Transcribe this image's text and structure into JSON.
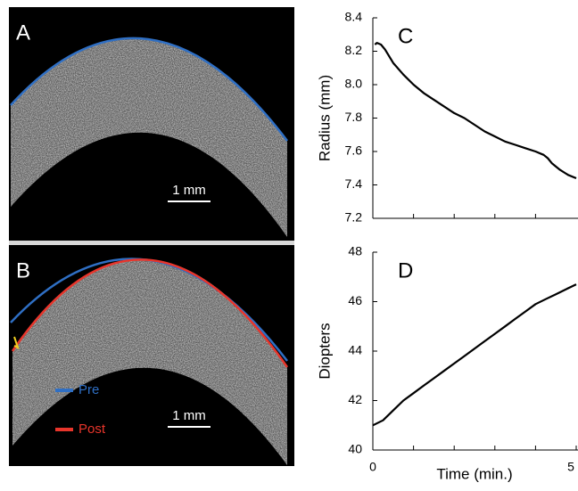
{
  "images": [
    {
      "label": "A",
      "scale_bar": "1 mm"
    },
    {
      "label": "B",
      "scale_bar": "1 mm",
      "legend": [
        {
          "name": "Pre",
          "color": "#2f6fc4"
        },
        {
          "name": "Post",
          "color": "#e8352b"
        }
      ]
    }
  ],
  "chart_data": [
    {
      "type": "line",
      "label": "C",
      "ylabel": "Radius (mm)",
      "x": [
        0.05,
        0.1,
        0.2,
        0.3,
        0.5,
        0.75,
        1,
        1.25,
        1.5,
        1.75,
        2,
        2.25,
        2.5,
        2.75,
        3,
        3.25,
        3.5,
        3.75,
        4,
        4.2,
        4.3,
        4.4,
        4.6,
        4.8,
        5
      ],
      "series": [
        {
          "color": "#000000",
          "values": [
            8.24,
            8.25,
            8.24,
            8.21,
            8.13,
            8.06,
            8.0,
            7.95,
            7.91,
            7.87,
            7.83,
            7.8,
            7.76,
            7.72,
            7.69,
            7.66,
            7.64,
            7.62,
            7.6,
            7.58,
            7.56,
            7.53,
            7.49,
            7.46,
            7.44
          ]
        }
      ],
      "xlim": [
        0,
        5
      ],
      "xminorticks": [
        1,
        2,
        3,
        4
      ],
      "ylim": [
        7.2,
        8.4
      ],
      "yticks": [
        7.2,
        7.4,
        7.6,
        7.8,
        {
          "value": 8.0,
          "label": "8.0"
        },
        8.2,
        8.4
      ]
    },
    {
      "type": "line",
      "label": "D",
      "ylabel": "Diopters",
      "xlabel": "Time (min.)",
      "x": [
        0,
        0.25,
        0.5,
        0.75,
        1,
        1.25,
        1.5,
        1.75,
        2,
        2.25,
        2.5,
        2.75,
        3,
        3.25,
        3.5,
        3.75,
        4,
        4.25,
        4.5,
        4.75,
        5
      ],
      "series": [
        {
          "color": "#000000",
          "values": [
            41.0,
            41.2,
            41.6,
            42.0,
            42.3,
            42.6,
            42.9,
            43.2,
            43.5,
            43.8,
            44.1,
            44.4,
            44.7,
            45.0,
            45.3,
            45.6,
            45.9,
            46.1,
            46.3,
            46.5,
            46.7
          ]
        }
      ],
      "xlim": [
        0,
        5
      ],
      "xticks": [
        0,
        5
      ],
      "xminorticks": [
        1,
        2,
        3,
        4
      ],
      "ylim": [
        40,
        48
      ],
      "yticks": [
        40,
        42,
        44,
        46,
        48
      ]
    }
  ]
}
